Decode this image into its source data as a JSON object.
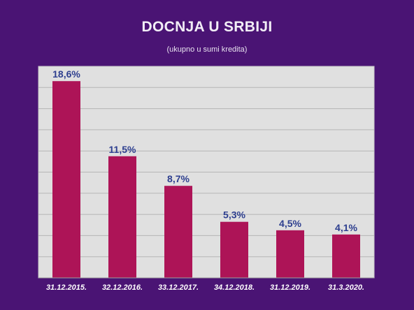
{
  "chart_data": {
    "type": "bar",
    "title": "DOCNJA U SRBIJI",
    "subtitle": "(ukupno u sumi kredita)",
    "categories": [
      "31.12.2015.",
      "32.12.2016.",
      "33.12.2017.",
      "34.12.2018.",
      "31.12.2019.",
      "31.3.2020."
    ],
    "values": [
      18.6,
      11.5,
      8.7,
      5.3,
      4.5,
      4.1
    ],
    "data_labels": [
      "18,6%",
      "11,5%",
      "8,7%",
      "5,3%",
      "4,5%",
      "4,1%"
    ],
    "ylim": [
      0,
      20
    ],
    "grid": true,
    "legend": "none",
    "colors": {
      "background": "#4a1474",
      "plot_area": "#e0e0e0",
      "bar": "#ad1457",
      "label": "#2e3f8f",
      "tick": "#ffffff",
      "title": "#f2eef6"
    }
  }
}
